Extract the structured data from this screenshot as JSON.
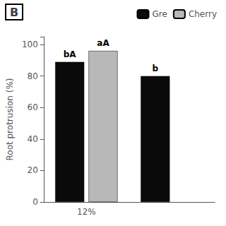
{
  "chart_data": {
    "type": "bar",
    "title": "B",
    "ylabel": "Root protrusion (%)",
    "categories": [
      "12%",
      null
    ],
    "series": [
      {
        "name": "Gre",
        "color": "#0a0a0a",
        "values": [
          89,
          80
        ],
        "labels": [
          "bA",
          "b"
        ]
      },
      {
        "name": "Cherry",
        "color": "#b8b8b8",
        "values": [
          96,
          null
        ],
        "labels": [
          "aA",
          null
        ]
      }
    ],
    "ylim": [
      0,
      105
    ],
    "yticks": [
      0,
      20,
      40,
      60,
      80,
      100
    ],
    "grid": false,
    "legend": "upper right"
  }
}
